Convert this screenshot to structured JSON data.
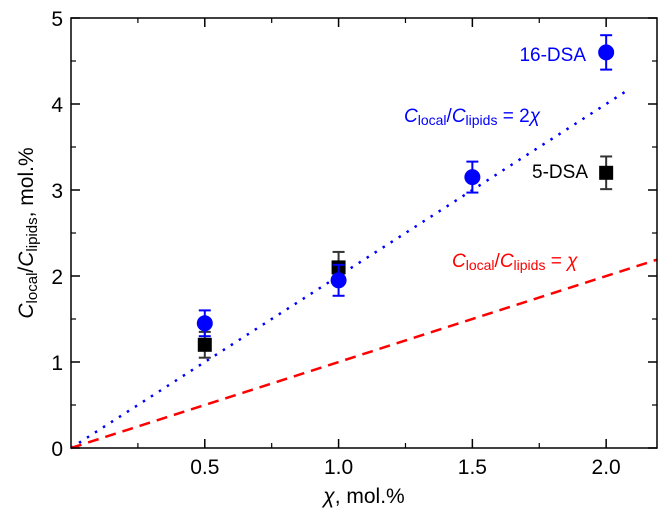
{
  "chart_data": {
    "type": "scatter",
    "xlabel": {
      "symbol": "χ",
      "rest": ", mol.%"
    },
    "ylabel": {
      "c1": "C",
      "sub1": "local",
      "slash": "/",
      "c2": "C",
      "sub2": "lipids",
      "rest": ", mol.%"
    },
    "xlim": [
      0,
      2.19
    ],
    "ylim": [
      0,
      5
    ],
    "x_ticks": [
      "0.5",
      "1.0",
      "1.5",
      "2.0"
    ],
    "x_tick_values": [
      0.5,
      1.0,
      1.5,
      2.0
    ],
    "y_ticks": [
      "0",
      "1",
      "2",
      "3",
      "4",
      "5"
    ],
    "y_tick_values": [
      0,
      1,
      2,
      3,
      4,
      5
    ],
    "grid": false,
    "series": [
      {
        "name": "16-DSA",
        "marker": "circle",
        "color": "#0000ff",
        "x": [
          0.5,
          1.0,
          1.5,
          2.0
        ],
        "y": [
          1.45,
          1.95,
          3.15,
          4.6
        ],
        "err": [
          0.15,
          0.18,
          0.18,
          0.2
        ]
      },
      {
        "name": "5-DSA",
        "marker": "square",
        "color": "#000000",
        "x": [
          0.5,
          1.0,
          2.0
        ],
        "y": [
          1.2,
          2.1,
          3.2
        ],
        "err": [
          0.15,
          0.18,
          0.19
        ]
      }
    ],
    "lines": [
      {
        "slope": 2,
        "x_range": [
          0,
          2.07
        ],
        "style": "dotted",
        "color": "#0000ff",
        "label": {
          "c1": "C",
          "sub1": "local",
          "slash": "/",
          "c2": "C",
          "sub2": "lipids",
          "rest": " = 2",
          "chi": "χ"
        }
      },
      {
        "slope": 1,
        "x_range": [
          0,
          2.19
        ],
        "style": "dashed",
        "color": "#ff0000",
        "label": {
          "c1": "C",
          "sub1": "local",
          "slash": "/",
          "c2": "C",
          "sub2": "lipids",
          "rest": " = ",
          "chi": "χ"
        }
      }
    ]
  }
}
